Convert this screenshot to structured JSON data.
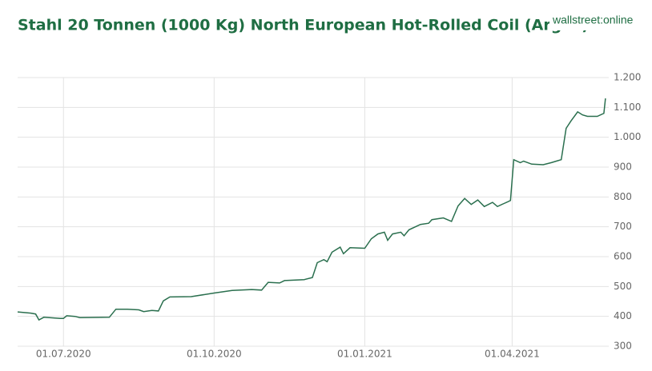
{
  "chart_data": {
    "type": "line",
    "title": "Stahl 20 Tonnen (1000 Kg) North European Hot-Rolled Coil (Argus)",
    "logo": "wallstreet:online",
    "x": [
      "2020-06-03",
      "2020-06-11",
      "2020-06-14",
      "2020-06-16",
      "2020-06-19",
      "2020-06-29",
      "2020-07-01",
      "2020-07-03",
      "2020-07-08",
      "2020-07-11",
      "2020-07-29",
      "2020-08-02",
      "2020-08-09",
      "2020-08-16",
      "2020-08-19",
      "2020-08-24",
      "2020-08-28",
      "2020-08-31",
      "2020-09-04",
      "2020-09-17",
      "2020-10-01",
      "2020-10-12",
      "2020-10-24",
      "2020-10-30",
      "2020-11-03",
      "2020-11-10",
      "2020-11-13",
      "2020-11-25",
      "2020-11-30",
      "2020-12-03",
      "2020-12-07",
      "2020-12-09",
      "2020-12-12",
      "2020-12-17",
      "2020-12-19",
      "2020-12-23",
      "2021-01-01",
      "2021-01-05",
      "2021-01-09",
      "2021-01-13",
      "2021-01-15",
      "2021-01-18",
      "2021-01-23",
      "2021-01-25",
      "2021-01-28",
      "2021-02-04",
      "2021-02-09",
      "2021-02-11",
      "2021-02-18",
      "2021-02-23",
      "2021-02-27",
      "2021-03-03",
      "2021-03-07",
      "2021-03-11",
      "2021-03-15",
      "2021-03-20",
      "2021-03-23",
      "2021-03-27",
      "2021-03-31",
      "2021-04-02",
      "2021-04-06",
      "2021-04-08",
      "2021-04-13",
      "2021-04-20",
      "2021-04-25",
      "2021-04-28",
      "2021-05-01",
      "2021-05-04",
      "2021-05-07",
      "2021-05-11",
      "2021-05-14",
      "2021-05-17",
      "2021-05-23",
      "2021-05-27",
      "2021-05-28"
    ],
    "series": [
      {
        "name": "Stahl",
        "color": "#2a6f4e",
        "values": [
          415,
          411,
          408,
          388,
          397,
          393,
          393,
          402,
          400,
          396,
          397,
          424,
          424,
          422,
          416,
          420,
          418,
          452,
          465,
          466,
          478,
          487,
          490,
          488,
          514,
          512,
          520,
          523,
          530,
          580,
          590,
          583,
          615,
          632,
          610,
          630,
          628,
          660,
          676,
          682,
          655,
          676,
          682,
          670,
          690,
          708,
          712,
          724,
          730,
          718,
          770,
          795,
          775,
          790,
          768,
          782,
          768,
          778,
          788,
          925,
          915,
          920,
          910,
          908,
          915,
          920,
          925,
          1030,
          1055,
          1085,
          1075,
          1070,
          1070,
          1080,
          1130
        ]
      }
    ],
    "xlim": [
      "2020-06-03",
      "2021-05-30"
    ],
    "xticks": [
      {
        "value": "2020-07-01",
        "label": "01.07.2020"
      },
      {
        "value": "2020-10-01",
        "label": "01.10.2020"
      },
      {
        "value": "2021-01-01",
        "label": "01.01.2021"
      },
      {
        "value": "2021-04-01",
        "label": "01.04.2021"
      }
    ],
    "ylim": [
      300,
      1200
    ],
    "yticks": [
      300,
      400,
      500,
      600,
      700,
      800,
      900,
      {
        "value": 1000,
        "label": "1.000"
      },
      {
        "value": 1100,
        "label": "1.100"
      },
      {
        "value": 1200,
        "label": "1.200"
      }
    ],
    "grid": true
  }
}
